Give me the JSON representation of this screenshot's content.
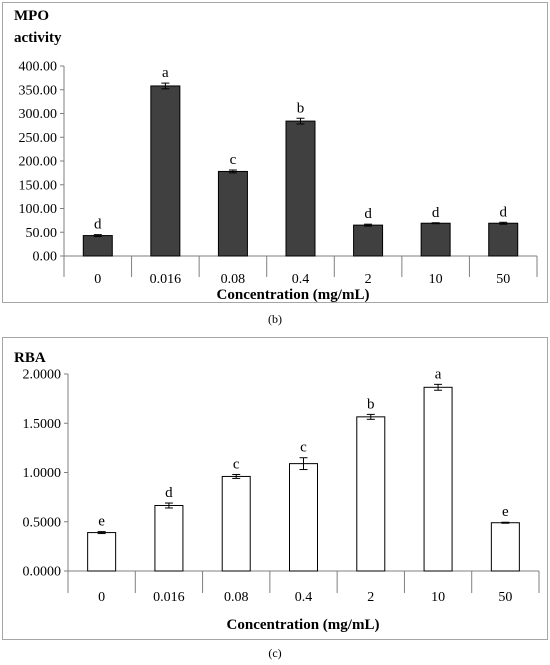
{
  "chart_data": [
    {
      "panel": "b",
      "type": "bar",
      "caption": "(b)",
      "ylabel_lines": [
        "MPO",
        "activity"
      ],
      "xlabel": "Concentration (mg/mL)",
      "categories": [
        "0",
        "0.016",
        "0.08",
        "0.4",
        "2",
        "10",
        "50"
      ],
      "values": [
        43,
        358,
        178,
        284,
        65,
        69,
        69
      ],
      "errors": [
        2,
        6,
        3,
        6,
        2,
        1,
        2
      ],
      "letters": [
        "d",
        "a",
        "c",
        "b",
        "d",
        "d",
        "d"
      ],
      "ylim": [
        0,
        400
      ],
      "yticks": [
        "0.00",
        "50.00",
        "100.00",
        "150.00",
        "200.00",
        "250.00",
        "300.00",
        "350.00",
        "400.00"
      ],
      "bar_fill": "#404040",
      "bar_stroke": "#000000"
    },
    {
      "panel": "c",
      "type": "bar",
      "caption": "(c)",
      "ylabel_lines": [
        "RBA"
      ],
      "xlabel": "Concentration (mg/mL)",
      "categories": [
        "0",
        "0.016",
        "0.08",
        "0.4",
        "2",
        "10",
        "50"
      ],
      "values": [
        0.39,
        0.665,
        0.96,
        1.09,
        1.565,
        1.865,
        0.49
      ],
      "errors": [
        0.01,
        0.025,
        0.02,
        0.06,
        0.025,
        0.03,
        0.005
      ],
      "letters": [
        "e",
        "d",
        "c",
        "c",
        "b",
        "a",
        "e"
      ],
      "ylim": [
        0,
        2
      ],
      "yticks": [
        "0.0000",
        "0.5000",
        "1.0000",
        "1.5000",
        "2.0000"
      ],
      "bar_fill": "#ffffff",
      "bar_stroke": "#000000"
    }
  ]
}
